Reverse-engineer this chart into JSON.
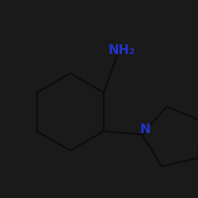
{
  "background_color": "#1a1a1a",
  "bond_color": "#0d0d0d",
  "label_color": "#2233cc",
  "line_width": 1.6,
  "NH2_label": "NH₂",
  "N_label": "N",
  "label_fontsize": 11.5,
  "sub2_fontsize": 9.0,
  "xlim": [
    0.0,
    1.0
  ],
  "ylim": [
    0.0,
    1.0
  ]
}
